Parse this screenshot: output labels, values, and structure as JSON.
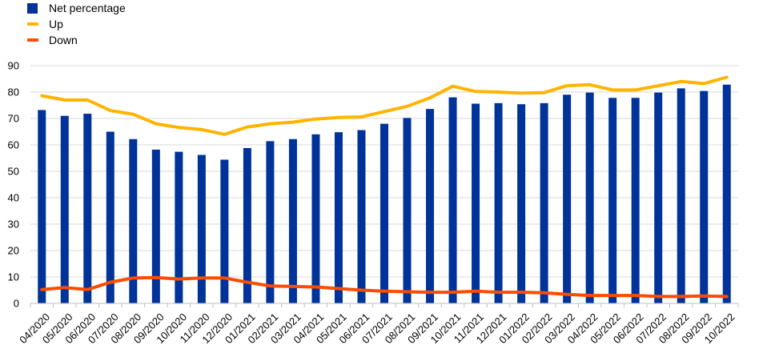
{
  "colors": {
    "bar": "#003399",
    "up": "#ffb400",
    "down": "#ff4b00",
    "grid": "#d9d9d9",
    "axis": "#bfbfbf"
  },
  "chart_data": {
    "type": "bar",
    "title": "",
    "xlabel": "",
    "ylabel": "",
    "ylim": [
      0,
      90
    ],
    "yticks": [
      0,
      10,
      20,
      30,
      40,
      50,
      60,
      70,
      80,
      90
    ],
    "grid": true,
    "legend_position": "top-left",
    "categories": [
      "04/2020",
      "05/2020",
      "06/2020",
      "07/2020",
      "08/2020",
      "09/2020",
      "10/2020",
      "11/2020",
      "12/2020",
      "01/2021",
      "02/2021",
      "03/2021",
      "04/2021",
      "05/2021",
      "06/2021",
      "07/2021",
      "08/2021",
      "09/2021",
      "10/2021",
      "11/2021",
      "12/2021",
      "01/2022",
      "02/2022",
      "03/2022",
      "04/2022",
      "05/2022",
      "06/2022",
      "07/2022",
      "08/2022",
      "09/2022",
      "10/2022"
    ],
    "series": [
      {
        "name": "Net percentage",
        "type": "bar",
        "values": [
          73.2,
          71.0,
          71.8,
          65.0,
          62.2,
          58.2,
          57.4,
          56.2,
          54.4,
          58.8,
          61.4,
          62.2,
          64.0,
          64.8,
          65.6,
          68.0,
          70.2,
          73.6,
          78.0,
          75.6,
          75.8,
          75.4,
          75.8,
          79.0,
          79.8,
          77.8,
          77.8,
          79.8,
          81.4,
          80.4,
          82.8
        ]
      },
      {
        "name": "Up",
        "type": "line",
        "values": [
          78.6,
          77.0,
          77.0,
          73.0,
          71.6,
          68.0,
          66.6,
          65.8,
          64.0,
          66.8,
          68.0,
          68.6,
          69.8,
          70.4,
          70.6,
          72.6,
          74.6,
          77.8,
          82.2,
          80.2,
          80.0,
          79.6,
          79.8,
          82.4,
          82.8,
          80.8,
          80.8,
          82.4,
          84.0,
          83.2,
          85.6
        ]
      },
      {
        "name": "Down",
        "type": "line",
        "values": [
          5.2,
          6.0,
          5.2,
          8.0,
          9.6,
          9.8,
          9.2,
          9.6,
          9.6,
          8.0,
          6.6,
          6.4,
          6.2,
          5.6,
          5.0,
          4.6,
          4.4,
          4.2,
          4.2,
          4.6,
          4.2,
          4.2,
          4.0,
          3.4,
          3.0,
          3.0,
          3.0,
          2.6,
          2.6,
          2.8,
          2.6
        ]
      }
    ]
  }
}
